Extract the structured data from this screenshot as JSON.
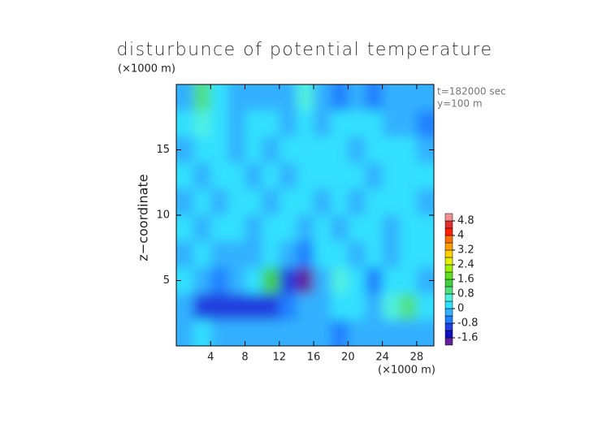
{
  "chart_data": {
    "type": "heatmap",
    "title": "disturbunce of potential temperature",
    "y_unit": "(×1000 m)",
    "x_unit": "(×1000 m)",
    "y_label": "z−coordinate",
    "annotations": [
      "t=182000 sec",
      "y=100 m"
    ],
    "x": [
      1,
      3,
      5,
      7,
      9,
      11,
      13,
      15,
      17,
      19,
      21,
      23,
      25,
      27,
      29
    ],
    "y": [
      19,
      17,
      15,
      13,
      11,
      9,
      7,
      5,
      3,
      1
    ],
    "z": [
      [
        -0.4,
        1.0,
        0.2,
        -0.4,
        -0.2,
        -0.4,
        -0.4,
        0.6,
        -0.2,
        -0.6,
        -0.4,
        -0.6,
        -0.4,
        -0.2,
        -0.4
      ],
      [
        0,
        0.8,
        0,
        -0.2,
        0,
        0,
        -0.2,
        0,
        -0.2,
        0,
        0.2,
        0,
        -0.2,
        -0.2,
        -0.6
      ],
      [
        -0.2,
        0,
        0.2,
        -0.2,
        0.2,
        -0.2,
        0,
        0,
        0.2,
        0,
        -0.2,
        0.2,
        0,
        0.2,
        -0.4
      ],
      [
        0,
        -0.2,
        0.2,
        0,
        -0.2,
        0.2,
        -0.2,
        0,
        0.2,
        0,
        0.2,
        -0.2,
        0.2,
        0,
        0
      ],
      [
        -0.2,
        0,
        -0.2,
        0.2,
        0,
        -0.2,
        0.2,
        0,
        -0.2,
        0.2,
        -0.2,
        0,
        0.2,
        0,
        -0.2
      ],
      [
        0,
        -0.2,
        0,
        0,
        -0.2,
        0.2,
        0,
        -0.2,
        0,
        -0.2,
        0.2,
        0,
        -0.2,
        0,
        0.2
      ],
      [
        -0.2,
        0,
        -0.2,
        -0.4,
        -0.2,
        0,
        -0.4,
        -0.6,
        0,
        0,
        -0.2,
        0,
        -0.2,
        0.2,
        0
      ],
      [
        0,
        -0.4,
        -0.6,
        -0.2,
        0,
        1.2,
        -1.2,
        -1.8,
        -0.4,
        0.6,
        0.2,
        -0.6,
        0.2,
        0.2,
        -0.2
      ],
      [
        -0.4,
        -0.8,
        -0.8,
        -1.0,
        -0.8,
        -1.0,
        -0.6,
        -0.2,
        -0.4,
        0,
        0,
        -0.2,
        0.6,
        1.0,
        0
      ],
      [
        -0.2,
        0.4,
        -0.2,
        -0.4,
        -0.2,
        -0.4,
        -0.2,
        -0.4,
        -0.2,
        -0.6,
        -0.2,
        -0.4,
        -0.2,
        -0.4,
        -0.2
      ]
    ],
    "xlim": [
      0,
      30
    ],
    "ylim": [
      0,
      20
    ],
    "xticks": [
      4,
      8,
      12,
      16,
      20,
      24,
      28
    ],
    "yticks": [
      5,
      10,
      15
    ],
    "colorbar": {
      "lim": [
        -2,
        5.2
      ],
      "ticks": [
        4.8,
        4,
        3.2,
        2.4,
        1.6,
        0.8,
        0,
        -0.8,
        -1.6
      ],
      "colors": [
        "#6020a0",
        "#1010c0",
        "#2040e0",
        "#2080ff",
        "#30b0ff",
        "#30e0ff",
        "#50f0e0",
        "#50e080",
        "#40d040",
        "#60e020",
        "#a0f000",
        "#e0f000",
        "#ffd000",
        "#ffa000",
        "#ff7000",
        "#ff2000",
        "#e03030",
        "#f09090"
      ]
    }
  }
}
